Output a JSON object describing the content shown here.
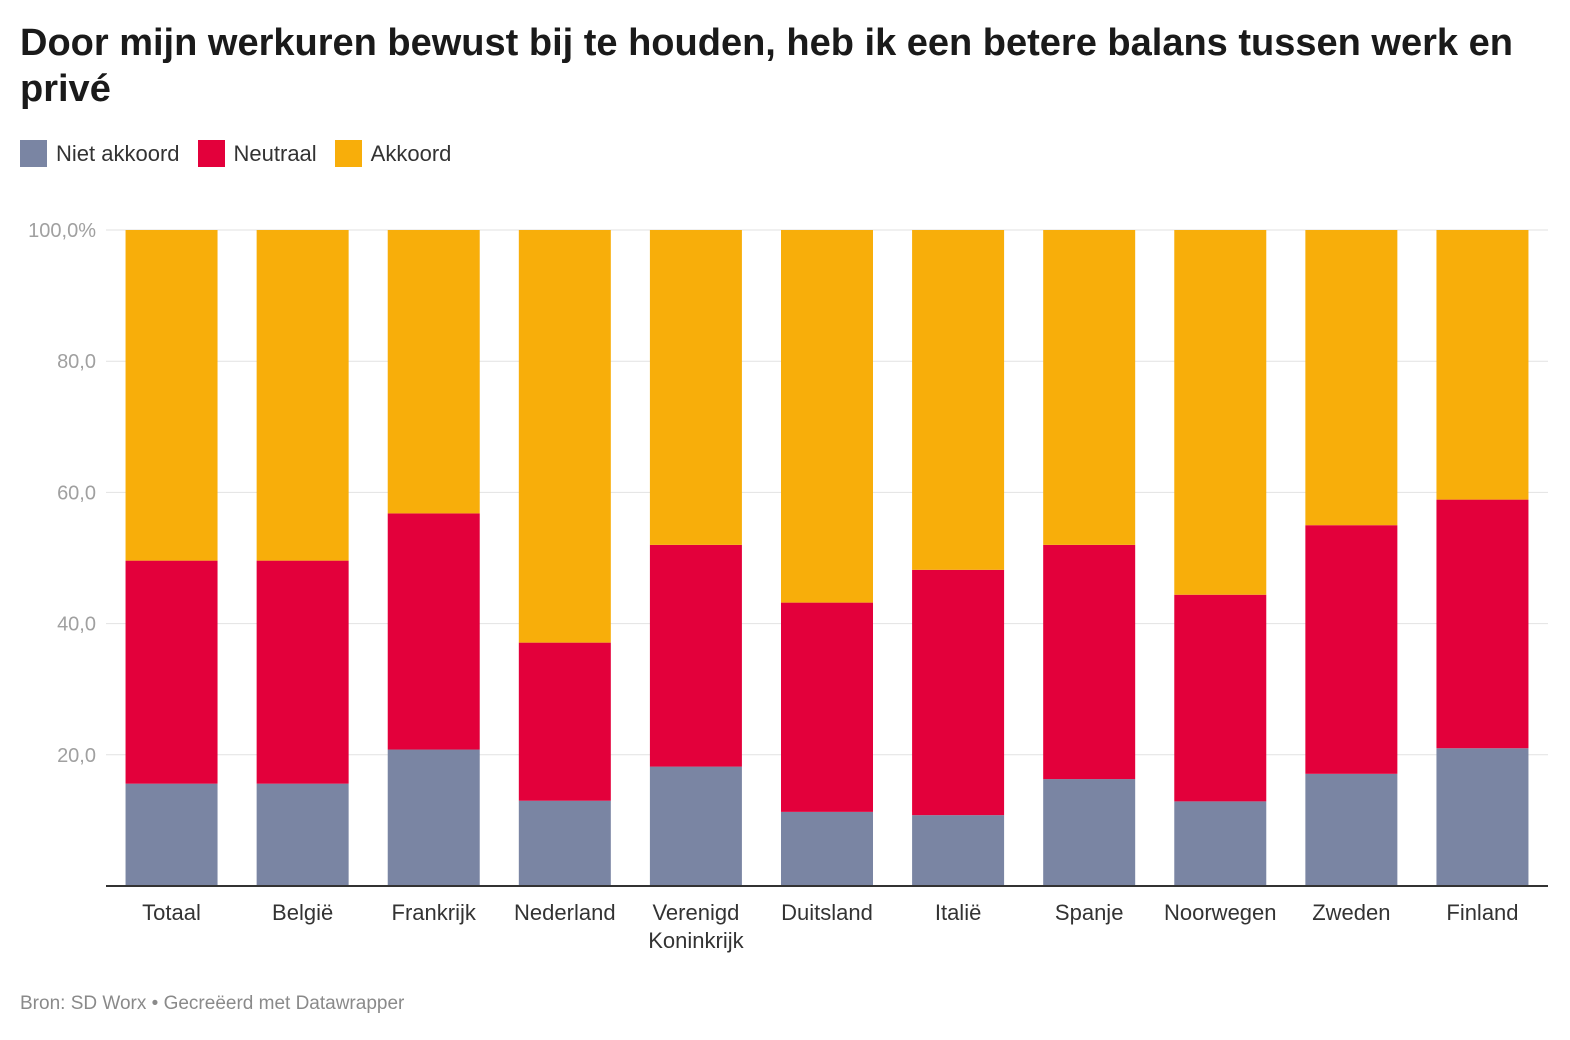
{
  "title": "Door mijn werkuren bewust bij te houden, heb ik een betere balans tussen werk en privé",
  "source_label": "Bron: SD Worx",
  "separator": "•",
  "credit": "Gecreëerd met Datawrapper",
  "colors": {
    "niet_akkoord": "#7a85a3",
    "neutraal": "#e3003b",
    "akkoord": "#f8ae0a"
  },
  "chart_data": {
    "type": "bar",
    "stacked": true,
    "categories": [
      "Totaal",
      "België",
      "Frankrijk",
      "Nederland",
      "Verenigd Koninkrijk",
      "Duitsland",
      "Italië",
      "Spanje",
      "Noorwegen",
      "Zweden",
      "Finland"
    ],
    "series": [
      {
        "name": "Niet akkoord",
        "color": "#7a85a3",
        "values": [
          15.6,
          15.6,
          20.8,
          13.0,
          18.2,
          11.3,
          10.8,
          16.3,
          12.9,
          17.1,
          21.0
        ]
      },
      {
        "name": "Neutraal",
        "color": "#e3003b",
        "values": [
          34.0,
          34.0,
          36.0,
          24.1,
          33.8,
          31.9,
          37.4,
          35.7,
          31.5,
          37.9,
          37.9
        ]
      },
      {
        "name": "Akkoord",
        "color": "#f8ae0a",
        "values": [
          50.4,
          50.4,
          43.2,
          62.9,
          48.0,
          56.8,
          51.8,
          48.0,
          55.6,
          45.0,
          41.1
        ]
      }
    ],
    "ylim": [
      0,
      100
    ],
    "yticks": [
      20,
      40,
      60,
      80,
      100
    ],
    "ytick_labels": [
      "20,0",
      "40,0",
      "60,0",
      "80,0",
      "100,0%"
    ],
    "grid": true,
    "legend_position": "top-left"
  }
}
